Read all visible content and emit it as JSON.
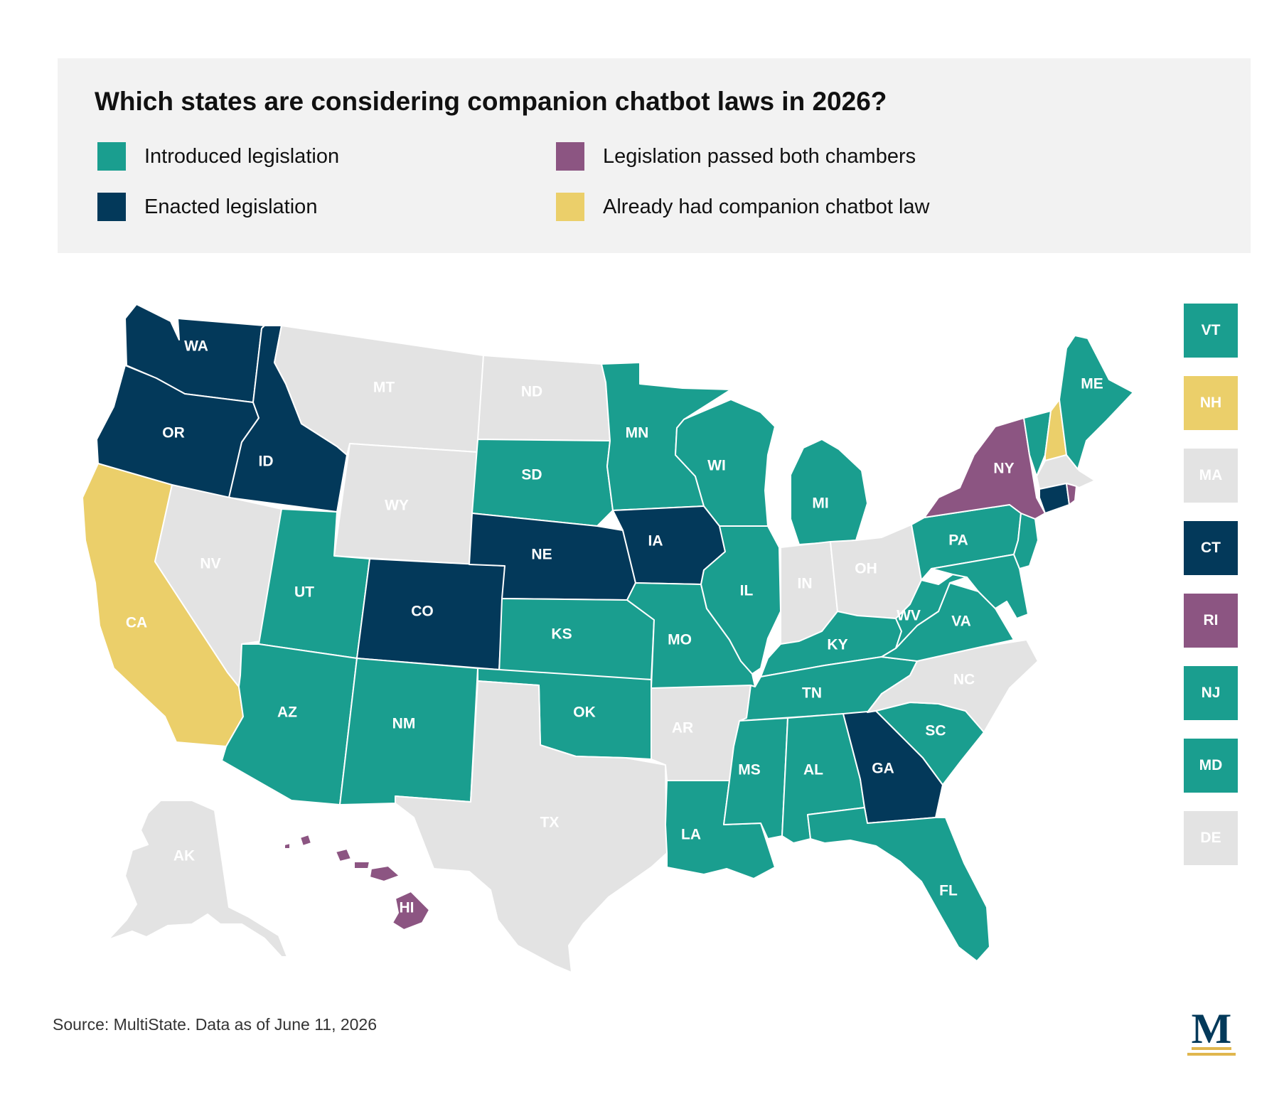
{
  "title": "Which states are considering companion chatbot laws in 2026?",
  "legend": [
    {
      "key": "introduced",
      "label": "Introduced legislation",
      "color": "#1a9e8f"
    },
    {
      "key": "passed",
      "label": "Legislation passed both chambers",
      "color": "#8c5582"
    },
    {
      "key": "enacted",
      "label": "Enacted legislation",
      "color": "#03395a"
    },
    {
      "key": "existing",
      "label": "Already had companion chatbot law",
      "color": "#ebcf6a"
    }
  ],
  "no_action_color": "#e3e3e3",
  "states": [
    {
      "abbr": "WA",
      "status": "enacted"
    },
    {
      "abbr": "OR",
      "status": "enacted"
    },
    {
      "abbr": "CA",
      "status": "existing"
    },
    {
      "abbr": "ID",
      "status": "enacted"
    },
    {
      "abbr": "NV",
      "status": "none"
    },
    {
      "abbr": "MT",
      "status": "none"
    },
    {
      "abbr": "WY",
      "status": "none"
    },
    {
      "abbr": "UT",
      "status": "introduced"
    },
    {
      "abbr": "AZ",
      "status": "introduced"
    },
    {
      "abbr": "CO",
      "status": "enacted"
    },
    {
      "abbr": "NM",
      "status": "introduced"
    },
    {
      "abbr": "ND",
      "status": "none"
    },
    {
      "abbr": "SD",
      "status": "introduced"
    },
    {
      "abbr": "NE",
      "status": "enacted"
    },
    {
      "abbr": "KS",
      "status": "introduced"
    },
    {
      "abbr": "OK",
      "status": "introduced"
    },
    {
      "abbr": "TX",
      "status": "none"
    },
    {
      "abbr": "MN",
      "status": "introduced"
    },
    {
      "abbr": "IA",
      "status": "enacted"
    },
    {
      "abbr": "MO",
      "status": "introduced"
    },
    {
      "abbr": "AR",
      "status": "none"
    },
    {
      "abbr": "LA",
      "status": "introduced"
    },
    {
      "abbr": "WI",
      "status": "introduced"
    },
    {
      "abbr": "IL",
      "status": "introduced"
    },
    {
      "abbr": "MI",
      "status": "introduced"
    },
    {
      "abbr": "IN",
      "status": "none"
    },
    {
      "abbr": "OH",
      "status": "none"
    },
    {
      "abbr": "KY",
      "status": "introduced"
    },
    {
      "abbr": "TN",
      "status": "introduced"
    },
    {
      "abbr": "MS",
      "status": "introduced"
    },
    {
      "abbr": "AL",
      "status": "introduced"
    },
    {
      "abbr": "GA",
      "status": "enacted"
    },
    {
      "abbr": "FL",
      "status": "introduced"
    },
    {
      "abbr": "SC",
      "status": "introduced"
    },
    {
      "abbr": "NC",
      "status": "none"
    },
    {
      "abbr": "VA",
      "status": "introduced"
    },
    {
      "abbr": "WV",
      "status": "introduced"
    },
    {
      "abbr": "PA",
      "status": "introduced"
    },
    {
      "abbr": "NY",
      "status": "passed"
    },
    {
      "abbr": "ME",
      "status": "introduced"
    },
    {
      "abbr": "AK",
      "status": "none"
    },
    {
      "abbr": "HI",
      "status": "passed"
    }
  ],
  "small_states": [
    {
      "abbr": "VT",
      "status": "introduced"
    },
    {
      "abbr": "NH",
      "status": "existing"
    },
    {
      "abbr": "MA",
      "status": "none"
    },
    {
      "abbr": "CT",
      "status": "enacted"
    },
    {
      "abbr": "RI",
      "status": "passed"
    },
    {
      "abbr": "NJ",
      "status": "introduced"
    },
    {
      "abbr": "MD",
      "status": "introduced"
    },
    {
      "abbr": "DE",
      "status": "none"
    }
  ],
  "source": "Source: MultiState. Data as of June 11, 2026",
  "logo_letter": "M"
}
